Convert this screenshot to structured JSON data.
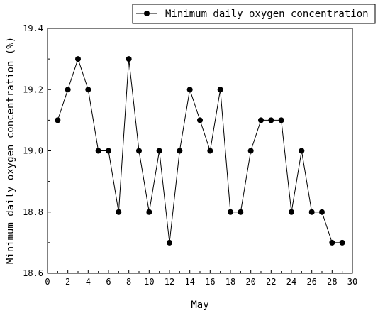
{
  "chart_data": {
    "type": "line",
    "xlabel": "May",
    "ylabel": "Minimum daily oxygen concentration (%)",
    "xlim": [
      0,
      30
    ],
    "ylim": [
      18.6,
      19.4
    ],
    "xticks": [
      "0",
      "2",
      "4",
      "6",
      "8",
      "10",
      "12",
      "14",
      "16",
      "18",
      "20",
      "22",
      "24",
      "26",
      "28",
      "30"
    ],
    "yticks": [
      "18.6",
      "18.8",
      "19.0",
      "19.2",
      "19.4"
    ],
    "grid": false,
    "legend_position": "top-right",
    "series": [
      {
        "name": "Minimum daily oxygen concentration",
        "color": "#000000",
        "x": [
          1,
          2,
          3,
          4,
          5,
          6,
          7,
          8,
          9,
          10,
          11,
          12,
          13,
          14,
          15,
          16,
          17,
          18,
          19,
          20,
          21,
          22,
          23,
          24,
          25,
          26,
          27,
          28,
          29
        ],
        "y": [
          19.1,
          19.2,
          19.3,
          19.2,
          19.0,
          19.0,
          18.8,
          19.3,
          19.0,
          18.8,
          19.0,
          18.7,
          19.0,
          19.2,
          19.1,
          19.0,
          19.2,
          18.8,
          18.8,
          19.0,
          19.1,
          19.1,
          19.1,
          18.8,
          19.0,
          18.8,
          18.8,
          18.7,
          18.7
        ]
      }
    ]
  }
}
